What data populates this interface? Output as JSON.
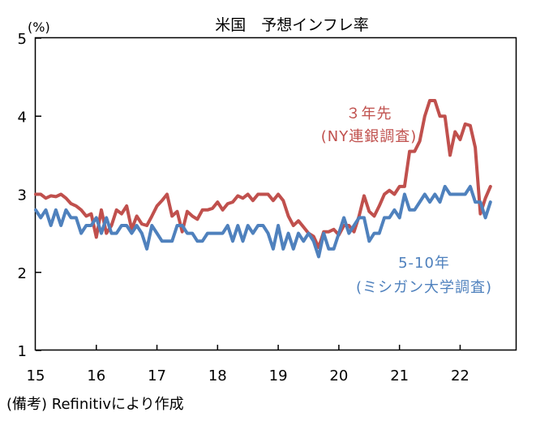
{
  "chart_data": {
    "type": "line",
    "title": "米国　予想インフレ率",
    "unit_label": "(%)",
    "ylim": [
      1,
      5
    ],
    "yticks": [
      "1",
      "2",
      "3",
      "4",
      "5"
    ],
    "xlim": [
      2015.0,
      2022.917
    ],
    "xticks": [
      "15",
      "16",
      "17",
      "18",
      "19",
      "20",
      "21",
      "22"
    ],
    "grid": false,
    "source_note": "(備考) Refinitivにより作成",
    "series": [
      {
        "name_lines": [
          "３年先",
          "(NY連銀調査)"
        ],
        "color": "#c0504d",
        "values": [
          3.0,
          3.0,
          2.95,
          2.98,
          2.97,
          3.0,
          2.95,
          2.88,
          2.85,
          2.8,
          2.72,
          2.75,
          2.45,
          2.8,
          2.5,
          2.6,
          2.8,
          2.75,
          2.85,
          2.55,
          2.72,
          2.62,
          2.6,
          2.72,
          2.85,
          2.92,
          3.0,
          2.72,
          2.78,
          2.52,
          2.78,
          2.72,
          2.68,
          2.8,
          2.8,
          2.82,
          2.9,
          2.8,
          2.88,
          2.9,
          2.98,
          2.95,
          3.0,
          2.92,
          3.0,
          3.0,
          3.0,
          2.92,
          3.0,
          2.92,
          2.72,
          2.6,
          2.66,
          2.58,
          2.5,
          2.46,
          2.32,
          2.52,
          2.52,
          2.55,
          2.48,
          2.6,
          2.6,
          2.52,
          2.72,
          2.98,
          2.78,
          2.72,
          2.85,
          3.0,
          3.05,
          3.0,
          3.1,
          3.1,
          3.55,
          3.55,
          3.68,
          4.0,
          4.2,
          4.2,
          4.0,
          4.0,
          3.5,
          3.8,
          3.7,
          3.9,
          3.88,
          3.6,
          2.75,
          2.95,
          3.1
        ]
      },
      {
        "name_lines": [
          "5-10年",
          "(ミシガン大学調査)"
        ],
        "color": "#4f81bd",
        "values": [
          2.8,
          2.7,
          2.8,
          2.6,
          2.8,
          2.6,
          2.8,
          2.7,
          2.7,
          2.5,
          2.6,
          2.6,
          2.7,
          2.5,
          2.7,
          2.5,
          2.5,
          2.6,
          2.6,
          2.5,
          2.6,
          2.5,
          2.3,
          2.6,
          2.5,
          2.4,
          2.4,
          2.4,
          2.6,
          2.6,
          2.5,
          2.5,
          2.4,
          2.4,
          2.5,
          2.5,
          2.5,
          2.5,
          2.6,
          2.4,
          2.6,
          2.4,
          2.6,
          2.5,
          2.6,
          2.6,
          2.5,
          2.3,
          2.6,
          2.3,
          2.5,
          2.3,
          2.5,
          2.4,
          2.5,
          2.4,
          2.2,
          2.5,
          2.3,
          2.3,
          2.5,
          2.7,
          2.5,
          2.6,
          2.7,
          2.7,
          2.4,
          2.5,
          2.5,
          2.7,
          2.7,
          2.8,
          2.7,
          3.0,
          2.8,
          2.8,
          2.9,
          3.0,
          2.9,
          3.0,
          2.9,
          3.1,
          3.0,
          3.0,
          3.0,
          3.0,
          3.1,
          2.9,
          2.9,
          2.7,
          2.9
        ]
      }
    ]
  }
}
